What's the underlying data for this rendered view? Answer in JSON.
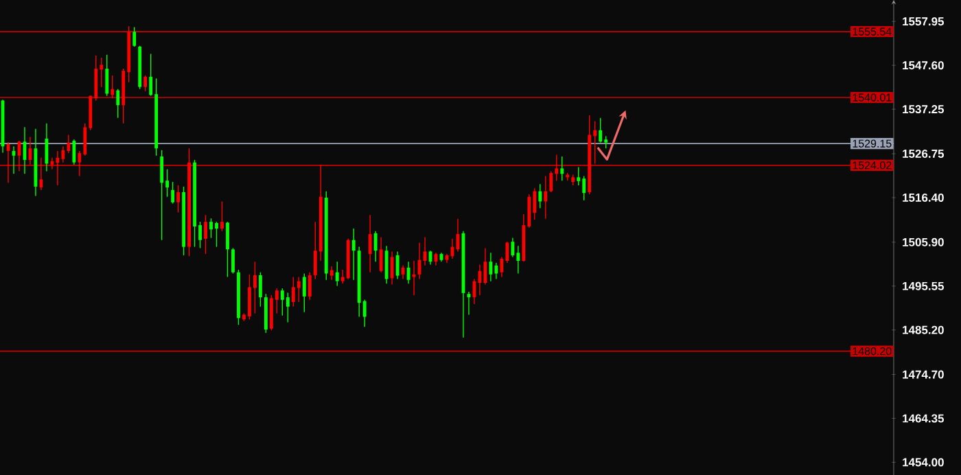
{
  "chart_data": {
    "type": "candlestick",
    "tick_labels": "y",
    "categories": [
      null,
      null,
      null,
      null,
      null,
      null,
      null,
      null,
      null,
      null,
      null,
      null,
      null,
      null,
      null,
      null,
      null,
      null,
      null,
      null,
      null,
      null,
      null,
      null,
      null,
      null,
      null,
      null,
      null,
      null,
      null,
      null,
      null,
      null,
      null,
      null,
      null,
      null,
      null,
      null,
      null,
      null,
      null,
      null,
      null,
      null,
      null,
      null,
      null,
      null,
      null,
      null,
      null,
      null,
      null,
      null,
      null,
      null,
      null,
      null,
      null,
      null,
      null,
      null,
      null,
      null,
      null,
      null,
      null,
      null,
      null,
      null,
      null,
      null,
      null,
      null,
      null,
      null,
      null,
      null,
      null,
      null,
      null,
      null,
      null,
      null,
      null,
      null,
      null,
      null,
      null,
      null,
      null,
      null,
      null,
      null,
      null,
      null,
      null,
      null,
      null,
      null,
      null,
      null,
      null,
      null,
      null,
      null,
      null,
      null,
      null,
      null,
      null,
      null,
      null,
      null,
      null,
      null,
      null,
      null,
      null,
      null,
      null,
      null,
      null,
      null,
      null,
      null,
      null,
      null,
      null,
      null,
      null,
      null,
      null,
      null,
      null,
      null,
      null,
      null,
      null,
      null,
      null,
      null,
      null,
      null,
      null,
      null,
      null,
      null,
      null,
      null,
      null,
      null,
      null,
      null,
      null,
      null,
      null,
      null,
      null,
      null,
      null
    ],
    "ohlc": [
      [
        1539.3,
        1539.5,
        1527.0,
        1528.5
      ],
      [
        1527.4,
        1529.5,
        1519.9,
        1529.0
      ],
      [
        1527.4,
        1528.5,
        1522.0,
        1526.3
      ],
      [
        1526.3,
        1529.8,
        1522.6,
        1529.6
      ],
      [
        1529.6,
        1533.0,
        1522.0,
        1525.3
      ],
      [
        1525.3,
        1530.7,
        1524.2,
        1528.0
      ],
      [
        1528.0,
        1532.6,
        1516.8,
        1519.0
      ],
      [
        1518.8,
        1525.8,
        1518.2,
        1520.7
      ],
      [
        1530.3,
        1533.9,
        1522.6,
        1524.4
      ],
      [
        1524.2,
        1525.8,
        1523.1,
        1525.0
      ],
      [
        1524.6,
        1527.4,
        1519.3,
        1525.8
      ],
      [
        1525.5,
        1528.5,
        1524.7,
        1527.6
      ],
      [
        1527.4,
        1531.2,
        1526.9,
        1529.4
      ],
      [
        1529.8,
        1530.1,
        1524.2,
        1524.7
      ],
      [
        1524.7,
        1527.4,
        1521.5,
        1526.9
      ],
      [
        1526.6,
        1533.9,
        1526.3,
        1533.0
      ],
      [
        1532.8,
        1540.5,
        1532.3,
        1540.4
      ],
      [
        1539.8,
        1549.9,
        1539.3,
        1546.8
      ],
      [
        1546.6,
        1549.4,
        1542.5,
        1547.7
      ],
      [
        1546.8,
        1550.1,
        1540.4,
        1540.9
      ],
      [
        1540.6,
        1545.2,
        1539.8,
        1542.0
      ],
      [
        1541.7,
        1542.0,
        1535.2,
        1538.2
      ],
      [
        1538.2,
        1546.8,
        1533.9,
        1546.3
      ],
      [
        1546.0,
        1556.8,
        1543.6,
        1555.5
      ],
      [
        1555.5,
        1556.6,
        1552.0,
        1552.2
      ],
      [
        1552.0,
        1552.2,
        1542.0,
        1542.5
      ],
      [
        1542.5,
        1545.2,
        1541.5,
        1544.9
      ],
      [
        1544.9,
        1550.3,
        1540.4,
        1540.6
      ],
      [
        1540.8,
        1544.5,
        1526.3,
        1528.0
      ],
      [
        1526.1,
        1527.6,
        1506.4,
        1519.9
      ],
      [
        1520.4,
        1523.1,
        1516.6,
        1518.8
      ],
      [
        1518.2,
        1520.1,
        1515.0,
        1515.3
      ],
      [
        1515.3,
        1519.3,
        1512.9,
        1517.7
      ],
      [
        1517.7,
        1519.0,
        1502.8,
        1504.8
      ],
      [
        1504.8,
        1528.0,
        1502.6,
        1524.7
      ],
      [
        1524.7,
        1525.3,
        1504.8,
        1509.6
      ],
      [
        1509.9,
        1510.7,
        1504.5,
        1506.4
      ],
      [
        1506.7,
        1512.3,
        1503.1,
        1510.7
      ],
      [
        1510.7,
        1511.5,
        1506.9,
        1508.9
      ],
      [
        1510.4,
        1510.7,
        1504.8,
        1509.1
      ],
      [
        1509.1,
        1515.5,
        1508.5,
        1510.7
      ],
      [
        1510.5,
        1510.7,
        1497.7,
        1504.2
      ],
      [
        1504.2,
        1504.5,
        1498.5,
        1498.8
      ],
      [
        1498.8,
        1499.4,
        1486.4,
        1488.0
      ],
      [
        1487.7,
        1489.1,
        1487.3,
        1488.8
      ],
      [
        1488.4,
        1498.3,
        1487.7,
        1495.3
      ],
      [
        1495.1,
        1501.3,
        1489.1,
        1498.1
      ],
      [
        1498.1,
        1498.8,
        1490.7,
        1492.9
      ],
      [
        1492.9,
        1493.7,
        1484.5,
        1485.3
      ],
      [
        1485.5,
        1493.4,
        1485.1,
        1492.7
      ],
      [
        1492.3,
        1495.0,
        1489.1,
        1494.5
      ],
      [
        1494.5,
        1495.0,
        1488.6,
        1492.3
      ],
      [
        1492.9,
        1494.0,
        1487.0,
        1490.7
      ],
      [
        1491.8,
        1497.7,
        1490.7,
        1495.3
      ],
      [
        1495.1,
        1497.7,
        1491.8,
        1496.7
      ],
      [
        1497.7,
        1498.5,
        1489.4,
        1493.1
      ],
      [
        1493.1,
        1498.8,
        1492.3,
        1498.1
      ],
      [
        1498.1,
        1510.7,
        1497.2,
        1503.9
      ],
      [
        1503.7,
        1524.2,
        1501.5,
        1516.6
      ],
      [
        1516.4,
        1517.9,
        1497.0,
        1498.5
      ],
      [
        1498.0,
        1500.2,
        1497.0,
        1499.3
      ],
      [
        1498.8,
        1501.3,
        1495.6,
        1496.7
      ],
      [
        1496.7,
        1499.4,
        1496.1,
        1497.7
      ],
      [
        1497.4,
        1506.7,
        1497.2,
        1506.4
      ],
      [
        1506.4,
        1509.1,
        1497.0,
        1503.9
      ],
      [
        1503.9,
        1504.8,
        1488.3,
        1491.6
      ],
      [
        1492.0,
        1492.3,
        1485.9,
        1488.3
      ],
      [
        1503.1,
        1512.3,
        1498.8,
        1507.8
      ],
      [
        1508.0,
        1508.5,
        1501.3,
        1503.9
      ],
      [
        1499.1,
        1507.1,
        1498.8,
        1504.2
      ],
      [
        1503.9,
        1505.0,
        1496.1,
        1497.2
      ],
      [
        1497.4,
        1503.7,
        1495.9,
        1502.4
      ],
      [
        1502.8,
        1503.7,
        1497.2,
        1498.0
      ],
      [
        1498.3,
        1500.4,
        1497.2,
        1499.9
      ],
      [
        1499.9,
        1501.3,
        1496.1,
        1497.0
      ],
      [
        1497.7,
        1501.5,
        1493.4,
        1498.3
      ],
      [
        1498.3,
        1505.8,
        1497.2,
        1501.7
      ],
      [
        1501.5,
        1507.1,
        1500.4,
        1503.7
      ],
      [
        1503.7,
        1503.9,
        1500.6,
        1501.3
      ],
      [
        1501.3,
        1503.4,
        1500.4,
        1503.1
      ],
      [
        1503.1,
        1503.4,
        1501.3,
        1501.7
      ],
      [
        1501.7,
        1503.1,
        1501.0,
        1502.8
      ],
      [
        1502.6,
        1506.7,
        1502.0,
        1504.8
      ],
      [
        1504.2,
        1511.4,
        1503.7,
        1507.8
      ],
      [
        1508.0,
        1508.5,
        1483.4,
        1493.9
      ],
      [
        1493.7,
        1494.2,
        1488.8,
        1492.9
      ],
      [
        1492.9,
        1497.2,
        1491.3,
        1496.7
      ],
      [
        1496.3,
        1500.6,
        1493.4,
        1499.1
      ],
      [
        1496.3,
        1504.5,
        1495.9,
        1501.3
      ],
      [
        1501.3,
        1503.4,
        1496.7,
        1498.3
      ],
      [
        1500.4,
        1501.0,
        1497.2,
        1498.5
      ],
      [
        1498.8,
        1502.4,
        1497.7,
        1502.0
      ],
      [
        1501.5,
        1506.0,
        1501.0,
        1505.8
      ],
      [
        1506.0,
        1506.9,
        1502.4,
        1502.8
      ],
      [
        1503.4,
        1505.0,
        1498.5,
        1501.5
      ],
      [
        1501.5,
        1512.5,
        1501.3,
        1509.9
      ],
      [
        1509.6,
        1517.2,
        1509.3,
        1516.6
      ],
      [
        1512.8,
        1518.6,
        1511.2,
        1517.9
      ],
      [
        1517.9,
        1519.6,
        1513.9,
        1515.5
      ],
      [
        1515.5,
        1521.5,
        1511.4,
        1517.9
      ],
      [
        1517.9,
        1522.6,
        1517.7,
        1522.2
      ],
      [
        1522.0,
        1526.5,
        1520.4,
        1523.3
      ],
      [
        1523.3,
        1526.1,
        1520.4,
        1522.0
      ],
      [
        1521.2,
        1522.2,
        1520.4,
        1521.8
      ],
      [
        1520.1,
        1521.8,
        1519.3,
        1521.2
      ],
      [
        1521.2,
        1523.6,
        1519.3,
        1520.3
      ],
      [
        1520.9,
        1521.5,
        1515.8,
        1517.5
      ],
      [
        1517.7,
        1535.8,
        1517.2,
        1531.2
      ],
      [
        1530.9,
        1534.4,
        1524.4,
        1532.3
      ],
      [
        1532.3,
        1535.2,
        1529.4,
        1529.6
      ],
      [
        1530.1,
        1530.9,
        1528.0,
        1529.4
      ],
      null,
      null,
      null,
      null,
      null,
      null,
      null,
      null,
      null,
      null,
      null,
      null,
      null,
      null,
      null,
      null,
      null,
      null,
      null,
      null,
      null,
      null,
      null,
      null,
      null,
      null,
      null,
      null,
      null,
      null,
      null,
      null,
      null,
      null,
      null,
      null,
      null,
      null,
      null,
      null,
      null,
      null,
      null,
      null,
      null,
      null,
      null,
      null,
      null,
      null,
      null,
      null
    ],
    "colors": [
      "#00ff00",
      "#ff0000",
      "#00ff00",
      "#ff0000",
      "#00ff00",
      "#ff0000",
      "#00ff00",
      "#ff0000",
      "#00ff00",
      "#ff0000",
      "#ff0000",
      "#ff0000",
      "#ff0000",
      "#00ff00",
      "#ff0000",
      "#ff0000",
      "#ff0000",
      "#ff0000",
      "#ff0000",
      "#00ff00",
      "#ff0000",
      "#00ff00",
      "#ff0000",
      "#ff0000",
      "#00ff00",
      "#00ff00",
      "#ff0000",
      "#00ff00",
      "#00ff00",
      "#00ff00",
      "#00ff00",
      "#00ff00",
      "#ff0000",
      "#00ff00",
      "#ff0000",
      "#00ff00",
      "#00ff00",
      "#ff0000",
      "#00ff00",
      "#00ff00",
      "#ff0000",
      "#00ff00",
      "#00ff00",
      "#00ff00",
      "#ff0000",
      "#ff0000",
      "#ff0000",
      "#00ff00",
      "#00ff00",
      "#ff0000",
      "#ff0000",
      "#00ff00",
      "#00ff00",
      "#ff0000",
      "#ff0000",
      "#00ff00",
      "#ff0000",
      "#ff0000",
      "#ff0000",
      "#00ff00",
      "#ff0000",
      "#00ff00",
      "#ff0000",
      "#ff0000",
      "#00ff00",
      "#00ff00",
      "#00ff00",
      "#ff0000",
      "#00ff00",
      "#ff0000",
      "#00ff00",
      "#ff0000",
      "#00ff00",
      "#ff0000",
      "#00ff00",
      "#ff0000",
      "#ff0000",
      "#ff0000",
      "#00ff00",
      "#ff0000",
      "#00ff00",
      "#ff0000",
      "#ff0000",
      "#ff0000",
      "#00ff00",
      "#00ff00",
      "#ff0000",
      "#ff0000",
      "#ff0000",
      "#00ff00",
      "#00ff00",
      "#ff0000",
      "#ff0000",
      "#00ff00",
      "#00ff00",
      "#ff0000",
      "#ff0000",
      "#ff0000",
      "#00ff00",
      "#ff0000",
      "#ff0000",
      "#ff0000",
      "#00ff00",
      "#ff0000",
      "#ff0000",
      "#00ff00",
      "#00ff00",
      "#ff0000",
      "#ff0000",
      "#00ff00",
      "#00ff00",
      null,
      null,
      null,
      null,
      null,
      null,
      null,
      null,
      null,
      null,
      null,
      null,
      null,
      null,
      null,
      null,
      null,
      null,
      null,
      null,
      null,
      null,
      null,
      null,
      null,
      null,
      null,
      null,
      null,
      null,
      null,
      null,
      null,
      null,
      null,
      null,
      null,
      null,
      null,
      null,
      null,
      null,
      null,
      null,
      null,
      null,
      null,
      null,
      null,
      null,
      null,
      null
    ],
    "ylim": [
      1451.0,
      1563.0
    ],
    "yticks": [
      1557.95,
      {
        "value": 1547.6,
        "label": "1547.60"
      },
      1537.25,
      1526.75,
      {
        "value": 1516.4,
        "label": "1516.40"
      },
      {
        "value": 1505.9,
        "label": "1505.90"
      },
      1495.55,
      {
        "value": 1485.2,
        "label": "1485.20"
      },
      {
        "value": 1474.7,
        "label": "1474.70"
      },
      1464.35,
      {
        "value": 1454.0,
        "label": "1454.00"
      }
    ],
    "ref_lines": [
      {
        "axis": "y",
        "value": 1555.54,
        "label": "1555.54",
        "color": "#c80000"
      },
      {
        "axis": "y",
        "value": 1540.01,
        "label": "1540.01",
        "color": "#c80000"
      },
      {
        "axis": "y",
        "value": 1529.15,
        "label": "1529.15",
        "color": "#9aa3b5"
      },
      {
        "axis": "y",
        "value": 1524.02,
        "label": "1524.02",
        "color": "#c80000"
      },
      {
        "axis": "y",
        "value": 1480.2,
        "label": "1480.20",
        "color": "#c80000"
      }
    ]
  }
}
